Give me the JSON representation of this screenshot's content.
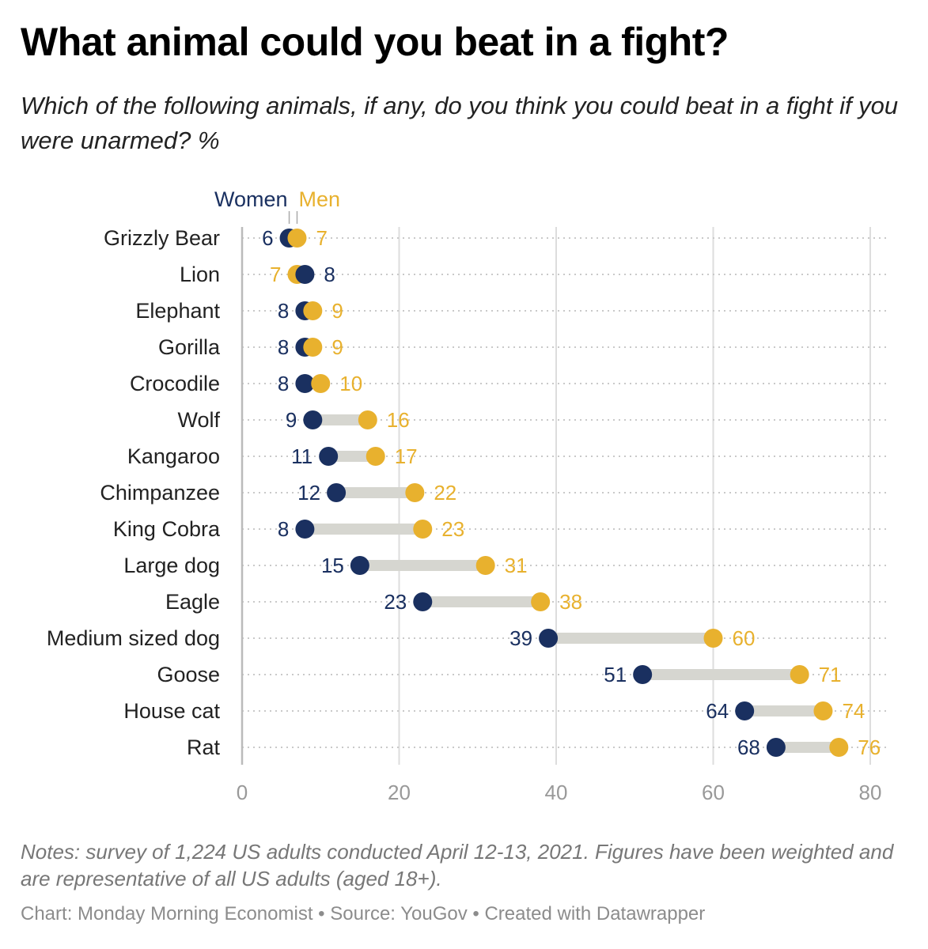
{
  "title": "What animal could you beat in a fight?",
  "subtitle": "Which of the following animals, if any, do you think you could beat in a fight if you were unarmed? %",
  "notes": "Notes: survey of 1,224 US adults conducted April 12-13, 2021. Figures have been weighted and are representative of all US adults (aged 18+).",
  "credits": {
    "chart": "Chart: Monday Morning Economist",
    "source": "Source: YouGov",
    "tool": "Created with Datawrapper",
    "separator": " • "
  },
  "colors": {
    "women": "#1a3060",
    "men": "#e8b12e",
    "connector": "#d6d6d0",
    "grid": "#dddddd",
    "tick": "#999999",
    "label": "#222222"
  },
  "chart_data": {
    "type": "dot-range",
    "x_axis": {
      "ticks": [
        0,
        20,
        40,
        60,
        80
      ],
      "range": [
        0,
        80
      ]
    },
    "legend": [
      {
        "name": "Women",
        "key": "women"
      },
      {
        "name": "Men",
        "key": "men"
      }
    ],
    "categories": [
      "Grizzly Bear",
      "Lion",
      "Elephant",
      "Gorilla",
      "Crocodile",
      "Wolf",
      "Kangaroo",
      "Chimpanzee",
      "King Cobra",
      "Large dog",
      "Eagle",
      "Medium sized dog",
      "Goose",
      "House cat",
      "Rat"
    ],
    "series": [
      {
        "name": "Women",
        "values": [
          6,
          8,
          8,
          8,
          8,
          9,
          11,
          12,
          8,
          15,
          23,
          39,
          51,
          64,
          68
        ]
      },
      {
        "name": "Men",
        "values": [
          7,
          7,
          9,
          9,
          10,
          16,
          17,
          22,
          23,
          31,
          38,
          60,
          71,
          74,
          76
        ]
      }
    ]
  }
}
